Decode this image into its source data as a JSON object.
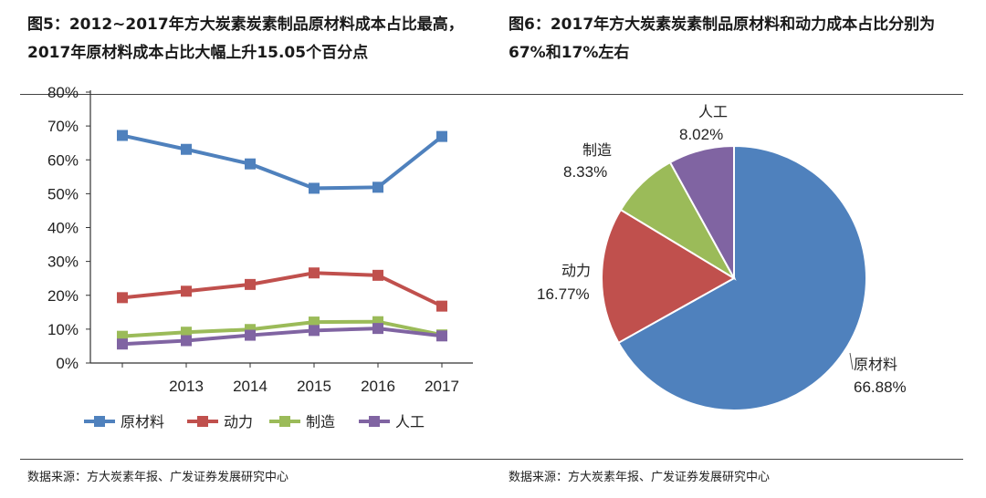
{
  "fig5_title": "图5：2012~2017年方大炭素炭素制品原材料成本占比最高，2017年原材料成本占比大幅上升15.05个百分点",
  "fig6_title": "图6：2017年方大炭素炭素制品原材料和动力成本占比分别为67%和17%左右",
  "source_left": "数据来源：方大炭素年报、广发证券发展研究中心",
  "source_right": "数据来源：方大炭素年报、广发证券发展研究中心",
  "chart_data": [
    {
      "type": "line",
      "categories": [
        "2012",
        "2013",
        "2014",
        "2015",
        "2016",
        "2017"
      ],
      "tick_labels": [
        "",
        "2013",
        "2014",
        "2015",
        "2016",
        "2017"
      ],
      "ylim": [
        0,
        80
      ],
      "yticks": [
        "0%",
        "10%",
        "20%",
        "30%",
        "40%",
        "50%",
        "60%",
        "70%",
        "80%"
      ],
      "legend_position": "bottom",
      "series": [
        {
          "name": "原材料",
          "color": "#4f81bd",
          "values": [
            67.2,
            63.1,
            58.8,
            51.6,
            51.9,
            66.9
          ]
        },
        {
          "name": "动力",
          "color": "#c0504d",
          "values": [
            19.3,
            21.2,
            23.2,
            26.6,
            25.9,
            16.8
          ]
        },
        {
          "name": "制造",
          "color": "#9bbb59",
          "values": [
            7.9,
            9.1,
            9.9,
            12.1,
            12.2,
            8.3
          ]
        },
        {
          "name": "人工",
          "color": "#8064a2",
          "values": [
            5.6,
            6.6,
            8.2,
            9.6,
            10.2,
            8.0
          ]
        }
      ]
    },
    {
      "type": "pie",
      "slices": [
        {
          "name": "原材料",
          "value": 66.88,
          "label": "66.88%",
          "color": "#4f81bd"
        },
        {
          "name": "动力",
          "value": 16.77,
          "label": "16.77%",
          "color": "#c0504d"
        },
        {
          "name": "制造",
          "value": 8.33,
          "label": "8.33%",
          "color": "#9bbb59"
        },
        {
          "name": "人工",
          "value": 8.02,
          "label": "8.02%",
          "color": "#8064a2"
        }
      ]
    }
  ]
}
